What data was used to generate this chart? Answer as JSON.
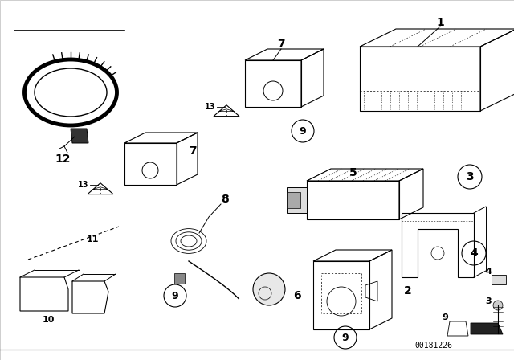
{
  "background_color": "#ffffff",
  "line_color": "#000000",
  "part_number_text": "00181226",
  "figsize": [
    6.4,
    4.48
  ],
  "dpi": 100
}
